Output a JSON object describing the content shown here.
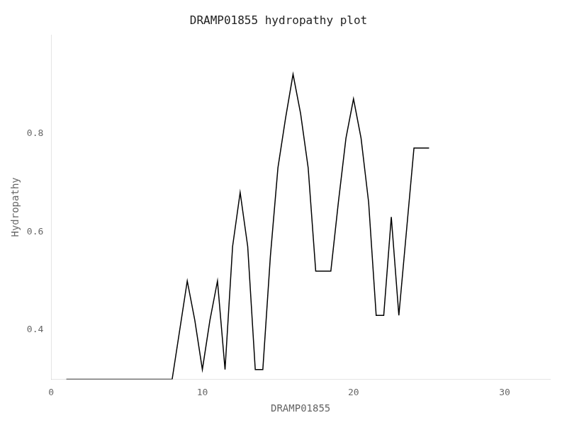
{
  "chart_data": {
    "type": "line",
    "title": "DRAMP01855 hydropathy plot",
    "xlabel": "DRAMP01855",
    "ylabel": "Hydropathy",
    "x": [
      1,
      2,
      3,
      4,
      5,
      6,
      7,
      8,
      9,
      9.5,
      10,
      10.5,
      11,
      11.5,
      12,
      12.5,
      13,
      13.5,
      14,
      14.5,
      15,
      15.5,
      16,
      16.5,
      17,
      17.5,
      18,
      18.5,
      19,
      19.5,
      20,
      20.5,
      21,
      21.5,
      22,
      22.5,
      23,
      24,
      25
    ],
    "values": [
      0.3,
      0.3,
      0.3,
      0.3,
      0.3,
      0.3,
      0.3,
      0.3,
      0.5,
      0.42,
      0.32,
      0.42,
      0.5,
      0.32,
      0.57,
      0.68,
      0.57,
      0.32,
      0.32,
      0.55,
      0.73,
      0.83,
      0.92,
      0.84,
      0.73,
      0.52,
      0.52,
      0.52,
      0.66,
      0.79,
      0.87,
      0.79,
      0.66,
      0.43,
      0.43,
      0.63,
      0.43,
      0.77,
      0.77
    ],
    "color": "black",
    "xlim": [
      0,
      33
    ],
    "ylim": [
      0.3,
      1.0
    ],
    "xticks": [
      0,
      10,
      20,
      30
    ],
    "yticks": [
      0.4,
      0.6,
      0.8
    ],
    "grid": false
  }
}
